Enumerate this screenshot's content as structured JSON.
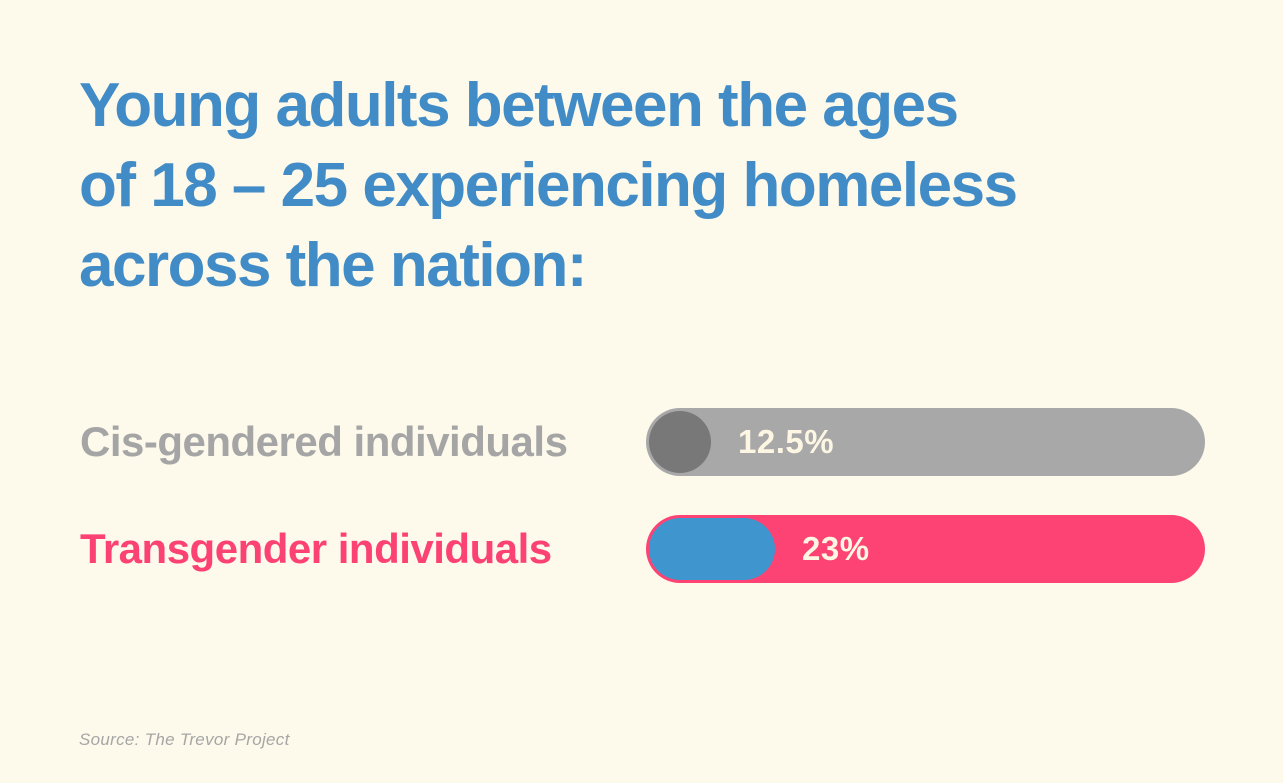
{
  "page": {
    "background_color": "#FDF9EB"
  },
  "title": {
    "lines": [
      "Young adults between the ages",
      "of 18 – 25 experiencing homeless",
      "across the nation:"
    ],
    "color": "#418CC7"
  },
  "rows": [
    {
      "label": "Cis-gendered individuals",
      "label_color": "#A5A5A5",
      "value": 12.5,
      "value_label": "12.5%",
      "bar_color": "#A8A8A8",
      "cap_shape": "circle",
      "cap_color": "#787878",
      "value_text_color": "#FCF6E3"
    },
    {
      "label": "Transgender individuals",
      "label_color": "#FB4273",
      "value": 23,
      "value_label": "23%",
      "bar_color": "#FC4374",
      "cap_shape": "pill",
      "cap_color": "#3F96CE",
      "value_text_color": "#FCF6E3"
    }
  ],
  "source": "Source: The Trevor Project",
  "chart_data": {
    "type": "bar",
    "orientation": "horizontal",
    "title": "Young adults between the ages of 18 – 25 experiencing homeless across the nation:",
    "categories": [
      "Cis-gendered individuals",
      "Transgender individuals"
    ],
    "values": [
      12.5,
      23
    ],
    "unit": "%",
    "value_labels": [
      "12.5%",
      "23%"
    ],
    "series_colors": [
      "#A8A8A8",
      "#FC4374"
    ],
    "legend": "none",
    "grid": false,
    "source": "Source: The Trevor Project"
  }
}
